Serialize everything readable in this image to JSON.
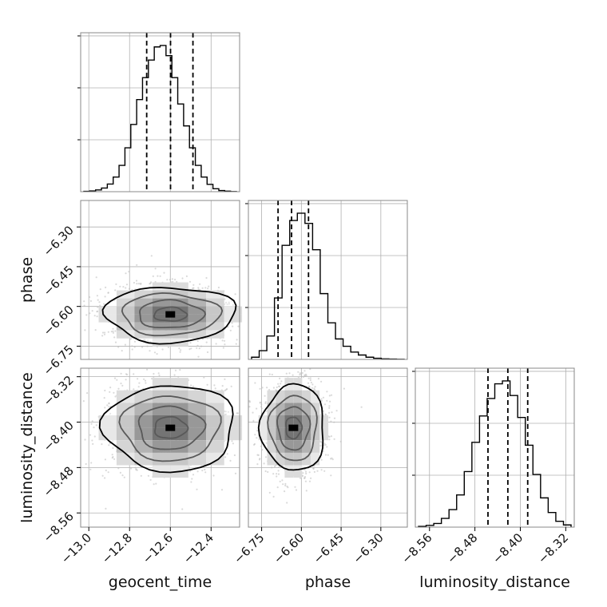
{
  "chart_data": {
    "type": "corner",
    "parameters": [
      "geocent_time",
      "phase",
      "luminosity_distance"
    ],
    "axis_labels": {
      "x": [
        "geocent_time",
        "phase",
        "luminosity_distance"
      ],
      "y": [
        "phase",
        "luminosity_distance"
      ]
    },
    "ticks": {
      "geocent_time": [
        -13.0,
        -12.8,
        -12.6,
        -12.4
      ],
      "phase": [
        -6.75,
        -6.6,
        -6.45,
        -6.3
      ],
      "luminosity_distance": [
        -8.56,
        -8.48,
        -8.4,
        -8.32
      ]
    },
    "tick_labels": {
      "geocent_time": [
        "−13.0",
        "−12.8",
        "−12.6",
        "−12.4"
      ],
      "phase": [
        "−6.75",
        "−6.60",
        "−6.45",
        "−6.30"
      ],
      "luminosity_distance": [
        "−8.56",
        "−8.48",
        "−8.40",
        "−8.32"
      ]
    },
    "ranges": {
      "geocent_time": [
        -13.04,
        -12.26
      ],
      "phase": [
        -6.8,
        -6.2
      ],
      "luminosity_distance": [
        -8.585,
        -8.305
      ]
    },
    "quantiles": {
      "geocent_time": [
        -12.716,
        -12.599,
        -12.489
      ],
      "phase": [
        -6.688,
        -6.637,
        -6.573
      ],
      "luminosity_distance": [
        -8.457,
        -8.422,
        -8.387
      ]
    },
    "histograms": {
      "geocent_time": [
        0.002,
        0.005,
        0.012,
        0.025,
        0.052,
        0.1,
        0.18,
        0.3,
        0.46,
        0.63,
        0.78,
        0.9,
        0.99,
        1.0,
        0.93,
        0.78,
        0.6,
        0.45,
        0.3,
        0.18,
        0.1,
        0.05,
        0.02,
        0.008,
        0.004,
        0.001
      ],
      "phase": [
        0.015,
        0.06,
        0.16,
        0.42,
        0.78,
        0.95,
        1.0,
        0.93,
        0.75,
        0.45,
        0.25,
        0.14,
        0.09,
        0.05,
        0.03,
        0.015,
        0.008,
        0.004,
        0.002,
        0.001
      ],
      "luminosity_distance": [
        0.005,
        0.012,
        0.025,
        0.06,
        0.12,
        0.22,
        0.38,
        0.58,
        0.76,
        0.88,
        0.98,
        1.0,
        0.9,
        0.75,
        0.56,
        0.36,
        0.2,
        0.1,
        0.04,
        0.015
      ]
    },
    "pairs": [
      {
        "x": "geocent_time",
        "y": "phase",
        "center": [
          -12.6,
          -6.63
        ],
        "spread": [
          0.16,
          0.055
        ]
      },
      {
        "x": "geocent_time",
        "y": "luminosity_distance",
        "center": [
          -12.6,
          -8.41
        ],
        "spread": [
          0.16,
          0.04
        ]
      },
      {
        "x": "phase",
        "y": "luminosity_distance",
        "center": [
          -6.63,
          -8.41
        ],
        "spread": [
          0.06,
          0.04
        ]
      }
    ],
    "contour_levels": [
      0.5,
      1.0,
      1.5,
      2.0
    ],
    "grid": true,
    "colors": {
      "line": "#000000",
      "grid": "#b0b0b0",
      "points": "#bbbbbb",
      "frame": "#888888"
    }
  }
}
